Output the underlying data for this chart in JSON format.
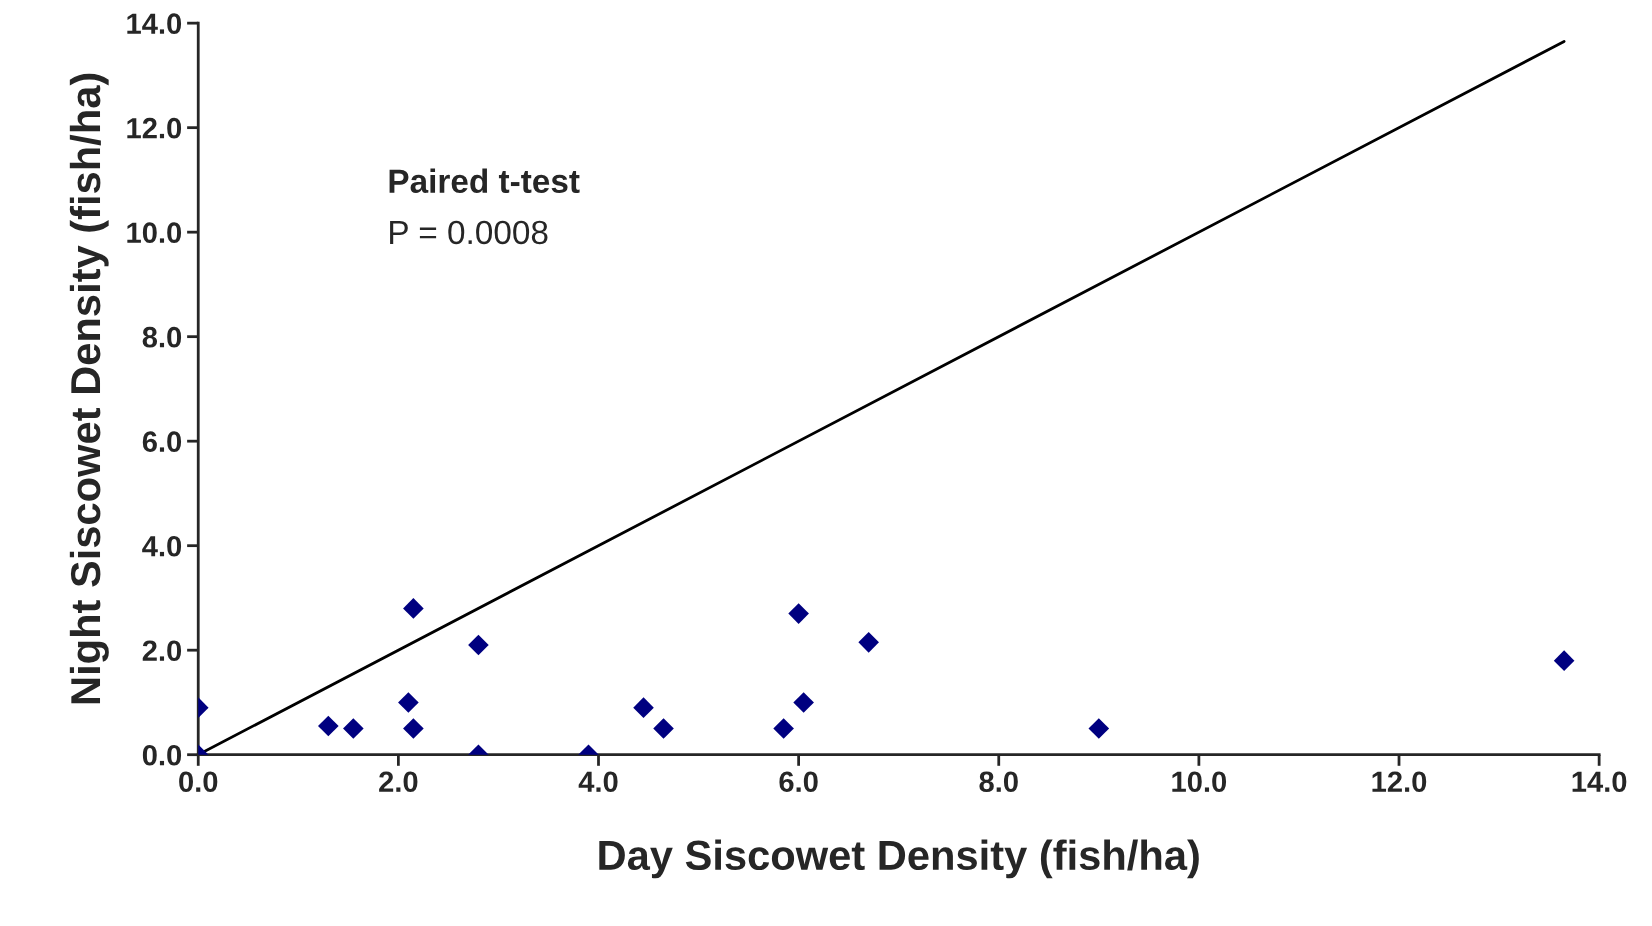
{
  "chart_data": {
    "type": "scatter",
    "xlabel": "Day Siscowet Density (fish/ha)",
    "ylabel": "Night Siscowet Density (fish/ha)",
    "annotations": [
      "Paired t-test",
      "P = 0.0008"
    ],
    "series": [
      {
        "color": "#000080",
        "marker": "diamond",
        "x": [
          0,
          0,
          1.3,
          1.55,
          2.1,
          2.15,
          2.15,
          2.8,
          2.8,
          3.9,
          4.45,
          4.65,
          5.85,
          6.0,
          6.05,
          6.7,
          9.0,
          13.65
        ],
        "values": [
          0.9,
          0,
          0.55,
          0.5,
          1.0,
          2.8,
          0.5,
          2.1,
          0,
          0,
          0.9,
          0.5,
          0.5,
          2.7,
          1.0,
          2.15,
          0.5,
          1.8
        ]
      },
      {
        "type": "line",
        "color": "#000000",
        "x": [
          0,
          13.65
        ],
        "values": [
          0,
          13.65
        ]
      }
    ],
    "xlim": [
      0,
      14
    ],
    "ylim": [
      0,
      14
    ],
    "xticks": [
      {
        "value": 0,
        "label": "0.0"
      },
      {
        "value": 2,
        "label": "2.0"
      },
      {
        "value": 4,
        "label": "4.0"
      },
      {
        "value": 6,
        "label": "6.0"
      },
      {
        "value": 8,
        "label": "8.0"
      },
      {
        "value": 10,
        "label": "10.0"
      },
      {
        "value": 12,
        "label": "12.0"
      },
      {
        "value": 14,
        "label": "14.0"
      }
    ],
    "yticks": [
      {
        "value": 0,
        "label": "0.0"
      },
      {
        "value": 2,
        "label": "2.0"
      },
      {
        "value": 4,
        "label": "4.0"
      },
      {
        "value": 6,
        "label": "6.0"
      },
      {
        "value": 8,
        "label": "8.0"
      },
      {
        "value": 10,
        "label": "10.0"
      },
      {
        "value": 12,
        "label": "12.0"
      },
      {
        "value": 14,
        "label": "14.0"
      }
    ],
    "grid": false,
    "legend": false
  }
}
